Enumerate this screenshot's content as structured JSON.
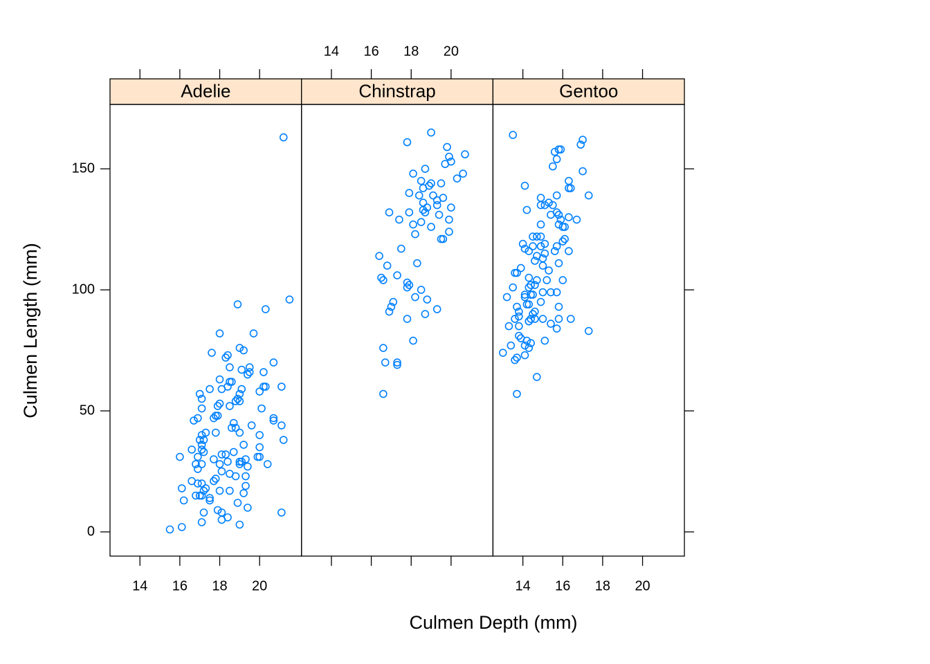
{
  "chart_data": {
    "type": "scatter",
    "xlabel": "Culmen Depth (mm)",
    "ylabel": "Culmen Length (mm)",
    "xlim": [
      12.5,
      22.1
    ],
    "ylim": [
      -10,
      176.6
    ],
    "xticks": [
      14,
      16,
      18,
      20
    ],
    "yticks": [
      0,
      50,
      100,
      150
    ],
    "color": "#0080ff",
    "strip_color": "#ffe5cc",
    "panels": [
      {
        "title": "Adelie",
        "x": [
          21.2,
          21.5,
          18.9,
          20.3,
          18.0,
          19.7,
          19.0,
          19.2,
          17.6,
          18.4,
          18.3,
          20.7,
          19.5,
          19.5,
          19.4,
          20.2,
          18.5,
          19.1,
          17.0,
          18.0,
          18.5,
          18.6,
          18.4,
          20.2,
          21.1,
          20.3,
          19.1,
          18.1,
          20.0,
          17.5,
          19.0,
          18.9,
          18.0,
          17.9,
          18.8,
          19.0,
          20.1,
          17.1,
          18.5,
          17.1,
          17.9,
          17.7,
          17.8,
          16.9,
          16.7,
          20.7,
          20.7,
          19.6,
          21.1,
          18.7,
          18.8,
          19.0,
          18.6,
          20.0,
          21.2,
          17.1,
          17.0,
          17.2,
          17.8,
          19.2,
          17.3,
          16.6,
          16.0,
          20.0,
          20.0,
          17.1,
          17.1,
          17.2,
          18.3,
          18.1,
          18.7,
          19.3,
          19.1,
          19.9,
          16.9,
          17.7,
          16.8,
          19.0,
          17.1,
          18.0,
          18.4,
          19.0,
          19.4,
          20.4,
          17.8,
          18.5,
          19.3,
          18.8,
          16.9,
          18.1,
          17.7,
          16.9,
          16.6,
          18.0,
          18.5,
          16.1,
          19.3,
          17.2,
          17.0,
          17.1,
          17.1,
          17.5,
          19.2,
          17.3,
          16.8,
          16.2,
          18.9,
          17.5,
          19.4,
          17.9,
          17.2,
          18.1,
          21.1,
          18.4,
          18.1,
          17.1,
          19.0,
          16.1,
          15.5
        ],
        "y": [
          163,
          96,
          94,
          92,
          82,
          82,
          76,
          75,
          74,
          73,
          72,
          70,
          68,
          66,
          65,
          66,
          68,
          67,
          57,
          63,
          62,
          62,
          60,
          60,
          60,
          60,
          59,
          59,
          58,
          59,
          57,
          55,
          53,
          52,
          54,
          54,
          51,
          55,
          52,
          51,
          48,
          47,
          48,
          47,
          46,
          46,
          47,
          44,
          44,
          45,
          43,
          41,
          43,
          40,
          38,
          40,
          38,
          38,
          41,
          36,
          41,
          34,
          31,
          35,
          31,
          36,
          34,
          33,
          32,
          32,
          33,
          30,
          29,
          31,
          31,
          30,
          28,
          29,
          28,
          28,
          29,
          28,
          27,
          28,
          22,
          24,
          23,
          23,
          26,
          25,
          21,
          20,
          21,
          17,
          17,
          18,
          19,
          17,
          15,
          15,
          20,
          14,
          16,
          18,
          15,
          13,
          12,
          13,
          10,
          9,
          8,
          8,
          8,
          6,
          5,
          4,
          3,
          2,
          1
        ]
      },
      {
        "title": "Chinstrap",
        "x": [
          19.0,
          17.8,
          19.8,
          20.7,
          19.9,
          19.7,
          20.0,
          18.7,
          18.1,
          20.6,
          20.3,
          19.5,
          19.0,
          18.9,
          18.5,
          18.6,
          17.9,
          19.1,
          18.4,
          18.6,
          19.6,
          18.8,
          18.6,
          19.3,
          19.3,
          20.0,
          16.9,
          17.9,
          19.9,
          18.7,
          17.4,
          18.5,
          18.1,
          19.0,
          19.4,
          19.9,
          18.2,
          19.5,
          19.6,
          17.5,
          16.4,
          16.8,
          18.3,
          17.3,
          16.5,
          16.6,
          17.8,
          17.8,
          17.9,
          18.5,
          18.2,
          17.1,
          18.8,
          17.0,
          16.9,
          19.3,
          18.7,
          17.8,
          18.1,
          16.6,
          16.7,
          17.3,
          17.3,
          16.6
        ],
        "y": [
          165,
          161,
          159,
          156,
          155,
          152,
          153,
          150,
          148,
          148,
          146,
          144,
          144,
          143,
          145,
          142,
          140,
          139,
          139,
          136,
          138,
          134,
          133,
          137,
          135,
          134,
          132,
          132,
          129,
          132,
          129,
          128,
          127,
          126,
          131,
          124,
          123,
          121,
          121,
          117,
          114,
          110,
          111,
          106,
          105,
          104,
          103,
          101,
          102,
          100,
          97,
          95,
          96,
          93,
          91,
          92,
          90,
          88,
          79,
          76,
          70,
          70,
          69,
          57
        ]
      },
      {
        "title": "Gentoo",
        "x": [
          13.5,
          17.0,
          16.9,
          15.8,
          15.6,
          15.9,
          15.7,
          15.5,
          17.0,
          16.3,
          14.1,
          16.4,
          16.3,
          17.3,
          15.7,
          14.9,
          15.3,
          15.1,
          15.5,
          14.9,
          14.2,
          15.7,
          15.8,
          16.3,
          16.7,
          15.4,
          15.9,
          16.0,
          16.1,
          15.8,
          14.9,
          14.5,
          14.7,
          14.9,
          16.1,
          16.0,
          15.1,
          14.0,
          14.5,
          14.1,
          14.9,
          15.7,
          14.3,
          15.1,
          15.0,
          16.3,
          14.7,
          15.6,
          14.6,
          13.7,
          13.9,
          13.6,
          15.0,
          15.8,
          15.3,
          14.3,
          14.7,
          14.3,
          14.6,
          15.2,
          14.4,
          13.5,
          15.4,
          16.0,
          14.1,
          14.5,
          15.7,
          15.0,
          13.2,
          14.1,
          14.3,
          14.4,
          14.9,
          14.2,
          15.8,
          13.7,
          13.8,
          14.6,
          13.8,
          14.5,
          13.6,
          14.6,
          15.4,
          14.3,
          15.8,
          15.0,
          14.3,
          16.4,
          13.3,
          13.8,
          14.4,
          15.7,
          17.3,
          13.8,
          13.9,
          14.2,
          14.4,
          14.1,
          15.1,
          13.4,
          13.0,
          14.3,
          14.1,
          13.7,
          13.6,
          14.7,
          13.7
        ],
        "y": [
          164,
          162,
          160,
          158,
          157,
          158,
          154,
          151,
          149,
          145,
          143,
          142,
          142,
          139,
          139,
          138,
          136,
          135,
          135,
          135,
          133,
          132,
          131,
          130,
          129,
          131,
          129,
          126,
          126,
          127,
          127,
          122,
          122,
          122,
          121,
          120,
          119,
          119,
          118,
          117,
          118,
          118,
          116,
          115,
          113,
          116,
          114,
          116,
          112,
          107,
          109,
          107,
          110,
          111,
          108,
          105,
          104,
          101,
          102,
          104,
          102,
          101,
          99,
          104,
          98,
          98,
          99,
          99,
          97,
          97,
          94,
          98,
          95,
          94,
          93,
          93,
          91,
          91,
          89,
          90,
          88,
          88,
          86,
          87,
          88,
          88,
          87,
          88,
          85,
          85,
          88,
          84,
          83,
          81,
          80,
          79,
          78,
          77,
          79,
          77,
          74,
          76,
          73,
          72,
          71,
          64,
          57
        ]
      }
    ]
  }
}
